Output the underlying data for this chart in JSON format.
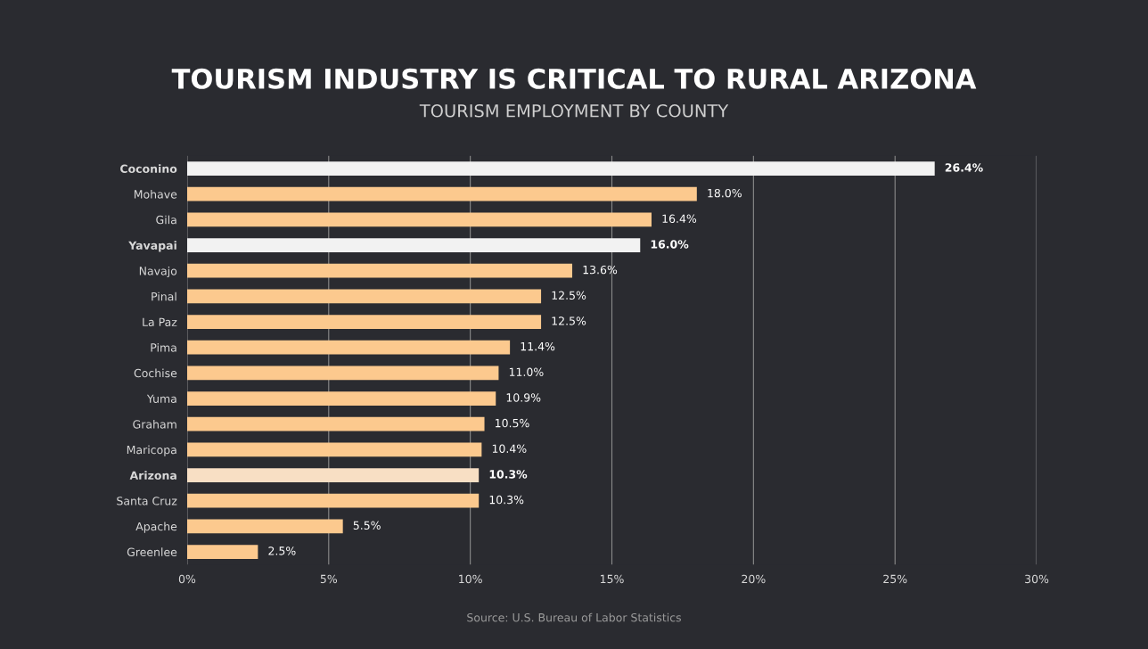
{
  "chart_data": {
    "type": "bar",
    "orientation": "horizontal",
    "title": "TOURISM INDUSTRY IS CRITICAL TO RURAL ARIZONA",
    "subtitle": "TOURISM EMPLOYMENT BY COUNTY",
    "categories": [
      "Coconino",
      "Mohave",
      "Gila",
      "Yavapai",
      "Navajo",
      "Pinal",
      "La Paz",
      "Pima",
      "Cochise",
      "Yuma",
      "Graham",
      "Maricopa",
      "Arizona",
      "Santa Cruz",
      "Apache",
      "Greenlee"
    ],
    "values": [
      26.4,
      18.0,
      16.4,
      16.0,
      13.6,
      12.5,
      12.5,
      11.4,
      11.0,
      10.9,
      10.5,
      10.4,
      10.3,
      10.3,
      5.5,
      2.5
    ],
    "value_labels": [
      "26.4%",
      "18.0%",
      "16.4%",
      "16.0%",
      "13.6%",
      "12.5%",
      "12.5%",
      "11.4%",
      "11.0%",
      "10.9%",
      "10.5%",
      "10.4%",
      "10.3%",
      "10.3%",
      "5.5%",
      "2.5%"
    ],
    "colors": [
      "#f2f2f2",
      "#fcc98e",
      "#fcc98e",
      "#f2f2f2",
      "#fcc98e",
      "#fcc98e",
      "#fcc98e",
      "#fcc98e",
      "#fcc98e",
      "#fcc98e",
      "#fcc98e",
      "#fcc98e",
      "#f8dfc4",
      "#fcc98e",
      "#fcc98e",
      "#fcc98e"
    ],
    "xlim": [
      0,
      30
    ],
    "xticks": [
      {
        "value": 0,
        "label": "0%"
      },
      {
        "value": 5,
        "label": "5%"
      },
      {
        "value": 10,
        "label": "10%"
      },
      {
        "value": 15,
        "label": "15%"
      },
      {
        "value": 20,
        "label": "20%"
      },
      {
        "value": 25,
        "label": "25%"
      },
      {
        "value": 30,
        "label": "30%"
      }
    ],
    "grid": "x",
    "annotations": [
      "Source: U.S. Bureau of Labor Statistics"
    ]
  }
}
